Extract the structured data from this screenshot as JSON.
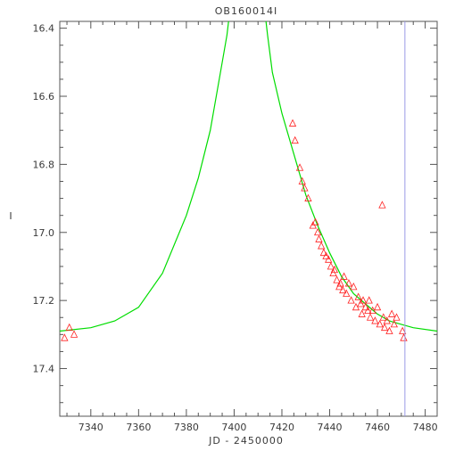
{
  "chart_data": {
    "type": "scatter",
    "title": "OB160014I",
    "xlabel": "JD - 2450000",
    "ylabel": "I",
    "xlim": [
      7327,
      7485
    ],
    "ylim": [
      17.54,
      16.38
    ],
    "x_ticks": [
      7340,
      7360,
      7380,
      7400,
      7420,
      7440,
      7460,
      7480
    ],
    "x_tick_labels": [
      "7340",
      "7360",
      "7380",
      "7400",
      "7420",
      "7440",
      "7460",
      "7480"
    ],
    "y_ticks": [
      16.4,
      16.6,
      16.8,
      17.0,
      17.2,
      17.4
    ],
    "y_tick_labels": [
      "16.4",
      "16.6",
      "16.8",
      "17.0",
      "17.2",
      "17.4"
    ],
    "grid": false,
    "vertical_line_x": 7471.5,
    "colors": {
      "model": "#00dd00",
      "observations": "#ff2020",
      "reference_line": "#9a9ae6",
      "axes": "#555555"
    },
    "series": [
      {
        "kind": "model-curve",
        "points": [
          [
            7327,
            17.29
          ],
          [
            7340,
            17.28
          ],
          [
            7350,
            17.26
          ],
          [
            7360,
            17.22
          ],
          [
            7370,
            17.12
          ],
          [
            7380,
            16.95
          ],
          [
            7385,
            16.84
          ],
          [
            7390,
            16.7
          ],
          [
            7395,
            16.5
          ],
          [
            7397,
            16.42
          ],
          [
            7399,
            16.3
          ],
          [
            7412,
            16.3
          ],
          [
            7414,
            16.42
          ],
          [
            7416,
            16.53
          ],
          [
            7420,
            16.65
          ],
          [
            7425,
            16.77
          ],
          [
            7430,
            16.89
          ],
          [
            7435,
            16.98
          ],
          [
            7440,
            17.06
          ],
          [
            7445,
            17.13
          ],
          [
            7450,
            17.18
          ],
          [
            7455,
            17.21
          ],
          [
            7460,
            17.24
          ],
          [
            7465,
            17.26
          ],
          [
            7470,
            17.27
          ],
          [
            7475,
            17.28
          ],
          [
            7485,
            17.29
          ]
        ]
      },
      {
        "kind": "observations",
        "points": [
          [
            7329,
            17.31
          ],
          [
            7331,
            17.28
          ],
          [
            7333,
            17.3
          ],
          [
            7424.5,
            16.68
          ],
          [
            7425.5,
            16.73
          ],
          [
            7427.5,
            16.81
          ],
          [
            7428.5,
            16.85
          ],
          [
            7429.5,
            16.87
          ],
          [
            7431,
            16.9
          ],
          [
            7433,
            16.98
          ],
          [
            7434,
            16.97
          ],
          [
            7435,
            17.0
          ],
          [
            7435.5,
            17.02
          ],
          [
            7436.5,
            17.04
          ],
          [
            7437.5,
            17.06
          ],
          [
            7438.5,
            17.07
          ],
          [
            7439.5,
            17.08
          ],
          [
            7440.5,
            17.1
          ],
          [
            7441.5,
            17.12
          ],
          [
            7442,
            17.11
          ],
          [
            7443,
            17.14
          ],
          [
            7444,
            17.16
          ],
          [
            7444.5,
            17.15
          ],
          [
            7445.5,
            17.17
          ],
          [
            7446,
            17.13
          ],
          [
            7447,
            17.18
          ],
          [
            7448,
            17.15
          ],
          [
            7449,
            17.2
          ],
          [
            7450,
            17.16
          ],
          [
            7451,
            17.22
          ],
          [
            7452,
            17.19
          ],
          [
            7453,
            17.21
          ],
          [
            7453.5,
            17.24
          ],
          [
            7454,
            17.2
          ],
          [
            7455,
            17.22
          ],
          [
            7456,
            17.23
          ],
          [
            7456.5,
            17.2
          ],
          [
            7457,
            17.25
          ],
          [
            7458,
            17.23
          ],
          [
            7459,
            17.26
          ],
          [
            7460,
            17.22
          ],
          [
            7461,
            17.27
          ],
          [
            7462,
            16.92
          ],
          [
            7462.5,
            17.25
          ],
          [
            7463,
            17.28
          ],
          [
            7464,
            17.26
          ],
          [
            7465,
            17.29
          ],
          [
            7466,
            17.24
          ],
          [
            7467,
            17.27
          ],
          [
            7468,
            17.25
          ],
          [
            7470.5,
            17.29
          ],
          [
            7471,
            17.31
          ]
        ]
      }
    ]
  }
}
